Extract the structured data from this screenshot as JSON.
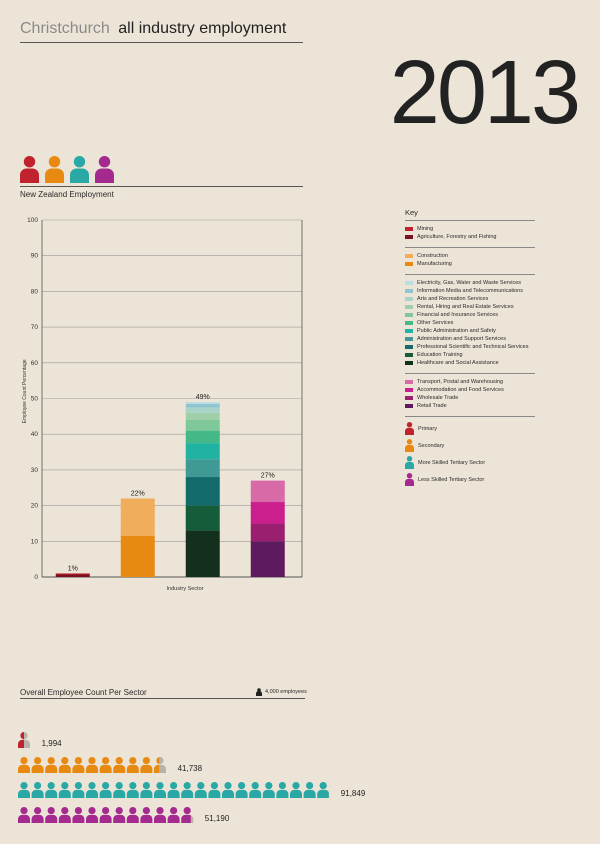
{
  "header": {
    "city": "Christchurch",
    "subtitle": "all industry employment",
    "year": "2013"
  },
  "nz_label": "New Zealand Employment",
  "colors": {
    "primary": "#c0232e",
    "secondary": "#e88a12",
    "more_skilled": "#2aa8a6",
    "less_skilled": "#a52a8f",
    "grey": "#b8b2a8"
  },
  "chart_data": {
    "type": "bar",
    "stacked": true,
    "title": "New Zealand Employment",
    "xlabel": "Industry Sector",
    "ylabel": "Employee Count Percentage",
    "ylim": [
      0,
      100
    ],
    "yticks": [
      0,
      10,
      20,
      30,
      40,
      50,
      60,
      70,
      80,
      90,
      100
    ],
    "categories": [
      "Primary",
      "Secondary",
      "More Skilled Tertiary Sector",
      "Less Skilled Tertiary Sector"
    ],
    "totals_labels": [
      "1%",
      "22%",
      "49%",
      "27%"
    ],
    "bars": [
      {
        "category": "Primary",
        "segments": [
          {
            "name": "Agriculture, Forestry and Fishing",
            "value": 0.7,
            "color": "#7a1020"
          },
          {
            "name": "Mining",
            "value": 0.3,
            "color": "#c0232e"
          }
        ]
      },
      {
        "category": "Secondary",
        "segments": [
          {
            "name": "Manufacturing",
            "value": 11.5,
            "color": "#e88a12"
          },
          {
            "name": "Construction",
            "value": 10.5,
            "color": "#f0ad5c"
          }
        ]
      },
      {
        "category": "More Skilled Tertiary Sector",
        "segments": [
          {
            "name": "Healthcare and Social Assistance",
            "value": 13,
            "color": "#13301f"
          },
          {
            "name": "Education Training",
            "value": 7,
            "color": "#145c3a"
          },
          {
            "name": "Professional Scientific and Technical Services",
            "value": 8,
            "color": "#136a6a"
          },
          {
            "name": "Administration and Support Services",
            "value": 5,
            "color": "#3f9a95"
          },
          {
            "name": "Public Administration and Safety",
            "value": 4.5,
            "color": "#20b3a2"
          },
          {
            "name": "Other Services",
            "value": 3.5,
            "color": "#45b888"
          },
          {
            "name": "Financial and Insurance Services",
            "value": 3,
            "color": "#7ec89a"
          },
          {
            "name": "Rental, Hiring and Real Estate Services",
            "value": 2,
            "color": "#9fcfa8"
          },
          {
            "name": "Arts and Recreation Services",
            "value": 1.5,
            "color": "#a9d3c8"
          },
          {
            "name": "Information Media and Telecommunications",
            "value": 1,
            "color": "#8fc5d0"
          },
          {
            "name": "Electricity, Gas, Water and Waste Services",
            "value": 0.5,
            "color": "#b8dde3"
          }
        ]
      },
      {
        "category": "Less Skilled Tertiary Sector",
        "segments": [
          {
            "name": "Retail Trade",
            "value": 10,
            "color": "#5e1a5e"
          },
          {
            "name": "Wholesale Trade",
            "value": 5,
            "color": "#9a1f6e"
          },
          {
            "name": "Accommodation and Food Services",
            "value": 6,
            "color": "#cc1f8e"
          },
          {
            "name": "Transport, Postal and Warehousing",
            "value": 6,
            "color": "#d86aa7"
          }
        ]
      }
    ]
  },
  "key": {
    "title": "Key",
    "groups": [
      [
        {
          "label": "Mining",
          "color": "#c0232e"
        },
        {
          "label": "Agriculture, Forestry and Fishing",
          "color": "#7a1020"
        }
      ],
      [
        {
          "label": "Construction",
          "color": "#f0ad5c"
        },
        {
          "label": "Manufacturing",
          "color": "#e88a12"
        }
      ],
      [
        {
          "label": "Electricity, Gas, Water and Waste Services",
          "color": "#b8dde3"
        },
        {
          "label": "Information Media and Telecommunications",
          "color": "#8fc5d0"
        },
        {
          "label": "Arts and Recreation Services",
          "color": "#a9d3c8"
        },
        {
          "label": "Rental, Hiring and Real Estate Services",
          "color": "#9fcfa8"
        },
        {
          "label": "Financial and Insurance Services",
          "color": "#7ec89a"
        },
        {
          "label": "Other Services",
          "color": "#45b888"
        },
        {
          "label": "Public Administration and Safety",
          "color": "#20b3a2"
        },
        {
          "label": "Administration and Support Services",
          "color": "#3f9a95"
        },
        {
          "label": "Professional Scientific and Technical Services",
          "color": "#136a6a"
        },
        {
          "label": "Education Training",
          "color": "#145c3a"
        },
        {
          "label": "Healthcare and Social Assistance",
          "color": "#13301f"
        }
      ],
      [
        {
          "label": "Transport, Postal and Warehousing",
          "color": "#d86aa7"
        },
        {
          "label": "Accommodation and Food Services",
          "color": "#cc1f8e"
        },
        {
          "label": "Wholesale Trade",
          "color": "#9a1f6e"
        },
        {
          "label": "Retail Trade",
          "color": "#5e1a5e"
        }
      ]
    ],
    "categories": [
      {
        "label": "Primary",
        "color": "#c0232e"
      },
      {
        "label": "Secondary",
        "color": "#e88a12"
      },
      {
        "label": "More Skilled Tertiary Sector",
        "color": "#2aa8a6"
      },
      {
        "label": "Less Skilled Tertiary Sector",
        "color": "#a52a8f"
      }
    ]
  },
  "overall": {
    "label": "Overall Employee Count Per Sector",
    "unit_label": "4,000 employees",
    "unit_value": 4000,
    "rows": [
      {
        "category": "Primary",
        "count": 1994,
        "count_label": "1,994",
        "color": "#c0232e"
      },
      {
        "category": "Secondary",
        "count": 41738,
        "count_label": "41,738",
        "color": "#e88a12"
      },
      {
        "category": "More Skilled Tertiary Sector",
        "count": 91849,
        "count_label": "91,849",
        "color": "#2aa8a6"
      },
      {
        "category": "Less Skilled Tertiary Sector",
        "count": 51190,
        "count_label": "51,190",
        "color": "#a52a8f"
      }
    ]
  }
}
